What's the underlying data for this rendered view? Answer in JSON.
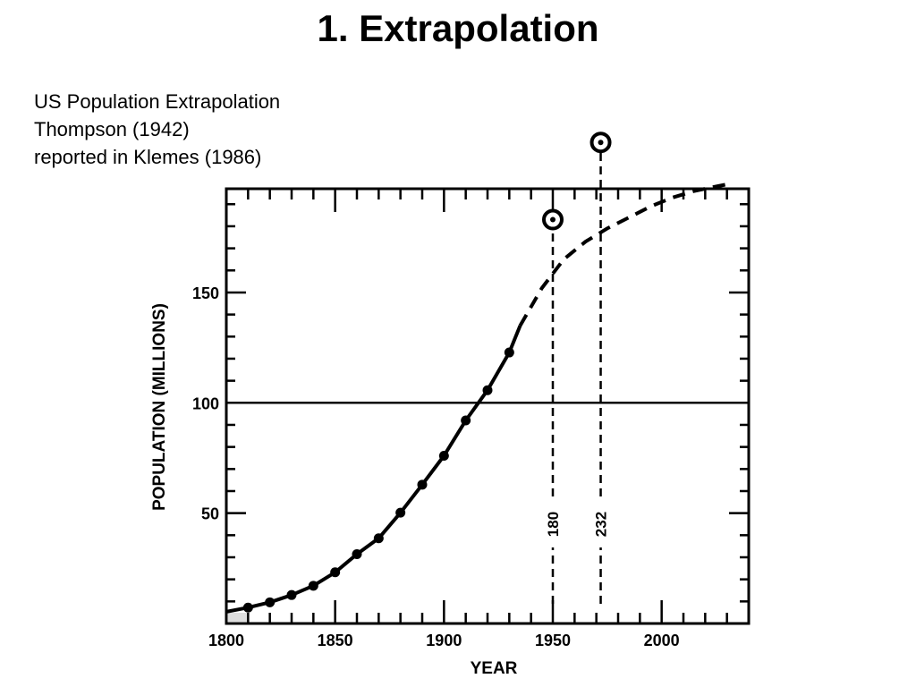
{
  "page": {
    "title": "1. Extrapolation",
    "caption": [
      "US Population Extrapolation",
      "Thompson (1942)",
      "reported in Klemes (1986)"
    ]
  },
  "chart_data": {
    "type": "line",
    "xlabel": "YEAR",
    "ylabel": "POPULATION (MILLIONS)",
    "xlim": [
      1800,
      2040
    ],
    "ylim": [
      0,
      197
    ],
    "x_ticks": [
      1800,
      1850,
      1900,
      1950,
      2000
    ],
    "y_ticks": [
      50,
      100,
      150
    ],
    "reference_line_y": 100,
    "grid": false,
    "series": [
      {
        "style": "solid-with-points",
        "x": [
          1810,
          1820,
          1830,
          1840,
          1850,
          1860,
          1870,
          1880,
          1890,
          1900,
          1910,
          1920,
          1930
        ],
        "y": [
          7.2,
          9.6,
          12.9,
          17.1,
          23.2,
          31.4,
          38.6,
          50.2,
          62.9,
          76.0,
          92.0,
          105.7,
          122.8
        ]
      },
      {
        "style": "solid-curve",
        "x": [
          1800,
          1810,
          1820,
          1830,
          1840,
          1850,
          1860,
          1870,
          1880,
          1890,
          1900,
          1910,
          1920,
          1930,
          1935
        ],
        "y": [
          5.3,
          7.2,
          9.6,
          12.9,
          17.1,
          23.2,
          31.4,
          38.6,
          50.2,
          62.9,
          76.0,
          92.0,
          105.7,
          122.8,
          135
        ]
      },
      {
        "style": "dashed-extrapolation",
        "x": [
          1935,
          1945,
          1955,
          1965,
          1975,
          1985,
          1995,
          2005,
          2015,
          2025,
          2030
        ],
        "y": [
          135,
          152,
          165,
          173,
          179,
          184,
          189,
          193,
          196,
          198,
          199
        ]
      }
    ],
    "markers": [
      {
        "label": "180",
        "x": 1950,
        "y_circle": 183
      },
      {
        "label": "232",
        "x": 1972,
        "y_circle": 218
      }
    ]
  }
}
